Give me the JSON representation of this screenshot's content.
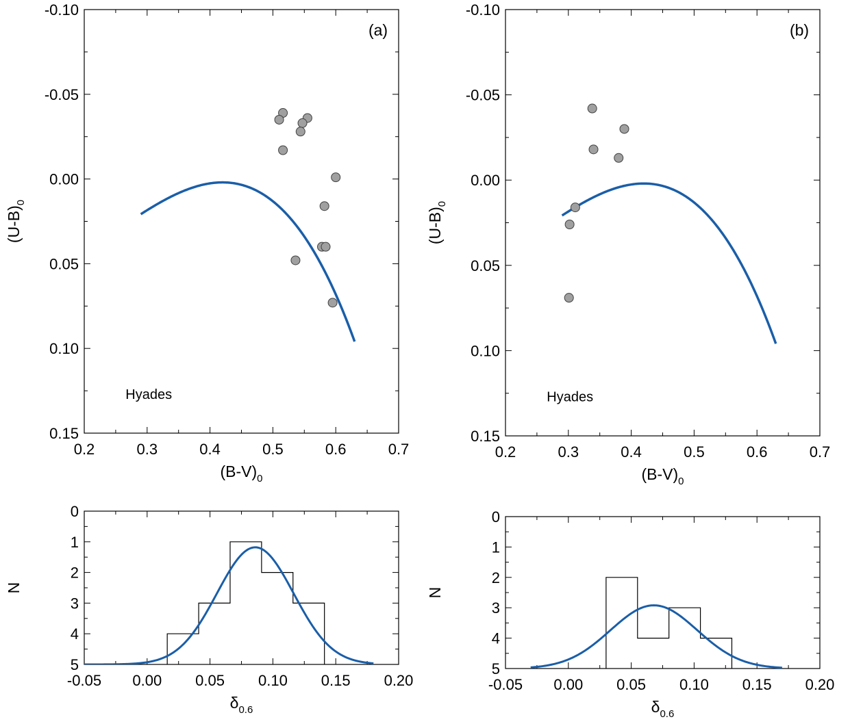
{
  "colors": {
    "curve": "#1a5ea8",
    "points_fill": "#a0a0a0",
    "points_stroke": "#404040",
    "axes": "#000000",
    "histogram": "#000000"
  },
  "chart_data": [
    {
      "id": "a-top",
      "type": "scatter",
      "panel_label": "(a)",
      "xlabel": "(B-V)",
      "xlabel_sub": "0",
      "ylabel": "(U-B)",
      "ylabel_sub": "0",
      "xlim": [
        0.2,
        0.7
      ],
      "ylim": [
        0.15,
        -0.1
      ],
      "y_inverted": true,
      "x_ticks": [
        "0.2",
        "0.3",
        "0.4",
        "0.5",
        "0.6",
        "0.7"
      ],
      "y_ticks": [
        "-0.10",
        "-0.05",
        "0.00",
        "0.05",
        "0.10",
        "0.15"
      ],
      "points": [
        {
          "x": 0.516,
          "y": -0.039
        },
        {
          "x": 0.51,
          "y": -0.035
        },
        {
          "x": 0.555,
          "y": -0.036
        },
        {
          "x": 0.547,
          "y": -0.033
        },
        {
          "x": 0.544,
          "y": -0.028
        },
        {
          "x": 0.516,
          "y": -0.017
        },
        {
          "x": 0.6,
          "y": -0.001
        },
        {
          "x": 0.582,
          "y": 0.016
        },
        {
          "x": 0.578,
          "y": 0.04
        },
        {
          "x": 0.584,
          "y": 0.04
        },
        {
          "x": 0.536,
          "y": 0.048
        },
        {
          "x": 0.595,
          "y": 0.073
        }
      ],
      "reference_curve": {
        "name": "Hyades",
        "x_range": [
          0.29,
          0.63
        ]
      },
      "annotation": "Hyades"
    },
    {
      "id": "b-top",
      "type": "scatter",
      "panel_label": "(b)",
      "xlabel": "(B-V)",
      "xlabel_sub": "0",
      "ylabel": "(U-B)",
      "ylabel_sub": "0",
      "xlim": [
        0.2,
        0.7
      ],
      "ylim": [
        0.15,
        -0.1
      ],
      "y_inverted": true,
      "x_ticks": [
        "0.2",
        "0.3",
        "0.4",
        "0.5",
        "0.6",
        "0.7"
      ],
      "y_ticks": [
        "-0.10",
        "-0.05",
        "0.00",
        "0.05",
        "0.10",
        "0.15"
      ],
      "points": [
        {
          "x": 0.338,
          "y": -0.042
        },
        {
          "x": 0.389,
          "y": -0.03
        },
        {
          "x": 0.34,
          "y": -0.018
        },
        {
          "x": 0.38,
          "y": -0.013
        },
        {
          "x": 0.311,
          "y": 0.016
        },
        {
          "x": 0.302,
          "y": 0.026
        },
        {
          "x": 0.301,
          "y": 0.069
        }
      ],
      "reference_curve": {
        "name": "Hyades",
        "x_range": [
          0.29,
          0.63
        ]
      },
      "annotation": "Hyades"
    },
    {
      "id": "a-bottom",
      "type": "bar",
      "xlabel": "δ",
      "xlabel_sub": "0.6",
      "ylabel": "N",
      "xlim": [
        -0.05,
        0.2
      ],
      "ylim": [
        0,
        5
      ],
      "x_ticks": [
        "-0.05",
        "0.00",
        "0.05",
        "0.10",
        "0.15",
        "0.20"
      ],
      "y_ticks": [
        "0",
        "1",
        "2",
        "3",
        "4",
        "5"
      ],
      "bin_edges": [
        0.016,
        0.041,
        0.066,
        0.091,
        0.116,
        0.141
      ],
      "counts": [
        1,
        2,
        4,
        3,
        2
      ],
      "gaussian_fit": {
        "amplitude": 3.82,
        "mean": 0.086,
        "sigma": 0.0305,
        "x_range": [
          -0.05,
          0.18
        ]
      }
    },
    {
      "id": "b-bottom",
      "type": "bar",
      "xlabel": "δ",
      "xlabel_sub": "0.6",
      "ylabel": "N",
      "xlim": [
        -0.05,
        0.2
      ],
      "ylim": [
        0,
        5
      ],
      "x_ticks": [
        "-0.05",
        "0.00",
        "0.05",
        "0.10",
        "0.15",
        "0.20"
      ],
      "y_ticks": [
        "0",
        "1",
        "2",
        "3",
        "4",
        "5"
      ],
      "bin_edges": [
        0.03,
        0.055,
        0.08,
        0.105,
        0.13
      ],
      "counts": [
        3,
        1,
        2,
        1
      ],
      "gaussian_fit": {
        "amplitude": 2.08,
        "mean": 0.068,
        "sigma": 0.0345,
        "x_range": [
          -0.03,
          0.17
        ]
      }
    }
  ]
}
